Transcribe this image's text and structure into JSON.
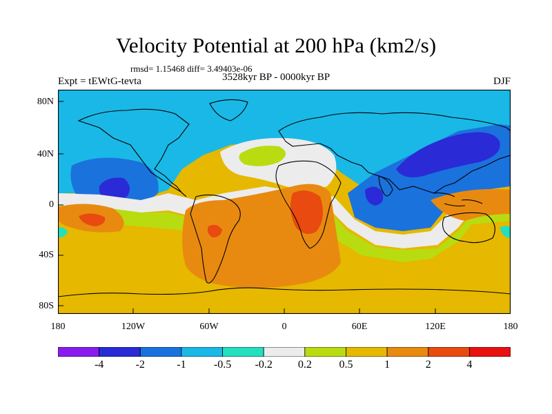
{
  "title": "Velocity Potential at 200 hPa (km2/s)",
  "stats_line": "rmsd= 1.15468 diff= 3.49403e-06",
  "experiment_label": "Expt = tEWtG-tevta",
  "period_label": "3528kyr BP - 0000kyr BP",
  "season_label": "DJF",
  "map": {
    "lat_ticks": [
      "80N",
      "40N",
      "0",
      "40S",
      "80S"
    ],
    "lon_ticks": [
      "180",
      "120W",
      "60W",
      "0",
      "60E",
      "120E",
      "180"
    ]
  },
  "colorbar": {
    "labels": [
      "-4",
      "-2",
      "-1",
      "-0.5",
      "-0.2",
      "0.2",
      "0.5",
      "1",
      "2",
      "4"
    ],
    "colors": [
      "#8a1bef",
      "#2a2ad6",
      "#1a72dd",
      "#1ab8e6",
      "#22dfc0",
      "#ececec",
      "#b8dc10",
      "#e6b800",
      "#e88a10",
      "#e84a10",
      "#e81010"
    ]
  }
}
